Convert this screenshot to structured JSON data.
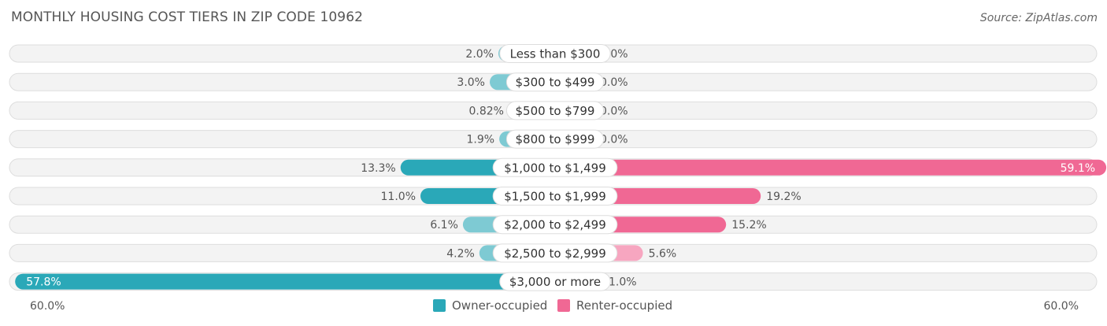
{
  "header": {
    "title": "MONTHLY HOUSING COST TIERS IN ZIP CODE 10962",
    "source": "Source: ZipAtlas.com"
  },
  "colors": {
    "owner": "#7ecad3",
    "owner_strong": "#2aa8b8",
    "renter": "#f7a6c0",
    "renter_strong": "#f06894",
    "track": "#efefef"
  },
  "legend": {
    "owner_label": "Owner-occupied",
    "renter_label": "Renter-occupied"
  },
  "axis": {
    "left_label": "60.0%",
    "right_label": "60.0%"
  },
  "chart_data": {
    "type": "bar",
    "orientation": "diverging-horizontal",
    "title": "MONTHLY HOUSING COST TIERS IN ZIP CODE 10962",
    "categories": [
      "Less than $300",
      "$300 to $499",
      "$500 to $799",
      "$800 to $999",
      "$1,000 to $1,499",
      "$1,500 to $1,999",
      "$2,000 to $2,499",
      "$2,500 to $2,999",
      "$3,000 or more"
    ],
    "series": [
      {
        "name": "Owner-occupied",
        "side": "left",
        "values": [
          2.0,
          3.0,
          0.82,
          1.9,
          13.3,
          11.0,
          6.1,
          4.2,
          57.8
        ],
        "labels": [
          "2.0%",
          "3.0%",
          "0.82%",
          "1.9%",
          "13.3%",
          "11.0%",
          "6.1%",
          "4.2%",
          "57.8%"
        ]
      },
      {
        "name": "Renter-occupied",
        "side": "right",
        "values": [
          0.0,
          0.0,
          0.0,
          0.0,
          59.1,
          19.2,
          15.2,
          5.6,
          1.0
        ],
        "labels": [
          "0.0%",
          "0.0%",
          "0.0%",
          "0.0%",
          "59.1%",
          "19.2%",
          "15.2%",
          "5.6%",
          "1.0%"
        ]
      }
    ],
    "xlim": [
      -60,
      60
    ],
    "legend_position": "bottom-center",
    "grid": false
  }
}
